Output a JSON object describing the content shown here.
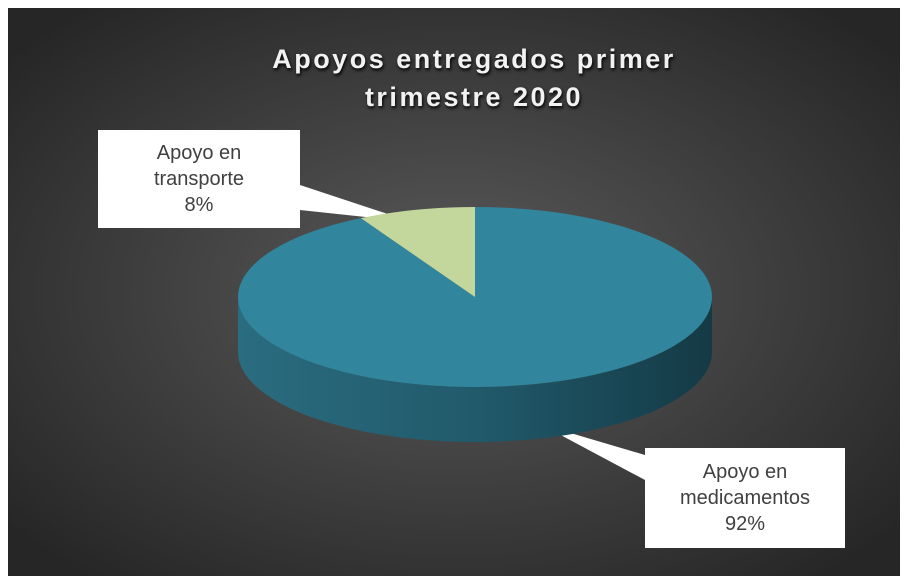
{
  "chart_data": {
    "type": "pie",
    "title": "Apoyos entregados primer trimestre 2020",
    "categories": [
      "Apoyo en medicamentos",
      "Apoyo en transporte"
    ],
    "values": [
      92,
      8
    ],
    "value_labels": [
      "92%",
      "8%"
    ],
    "colors": [
      "#31859c",
      "#c3d69b"
    ]
  }
}
